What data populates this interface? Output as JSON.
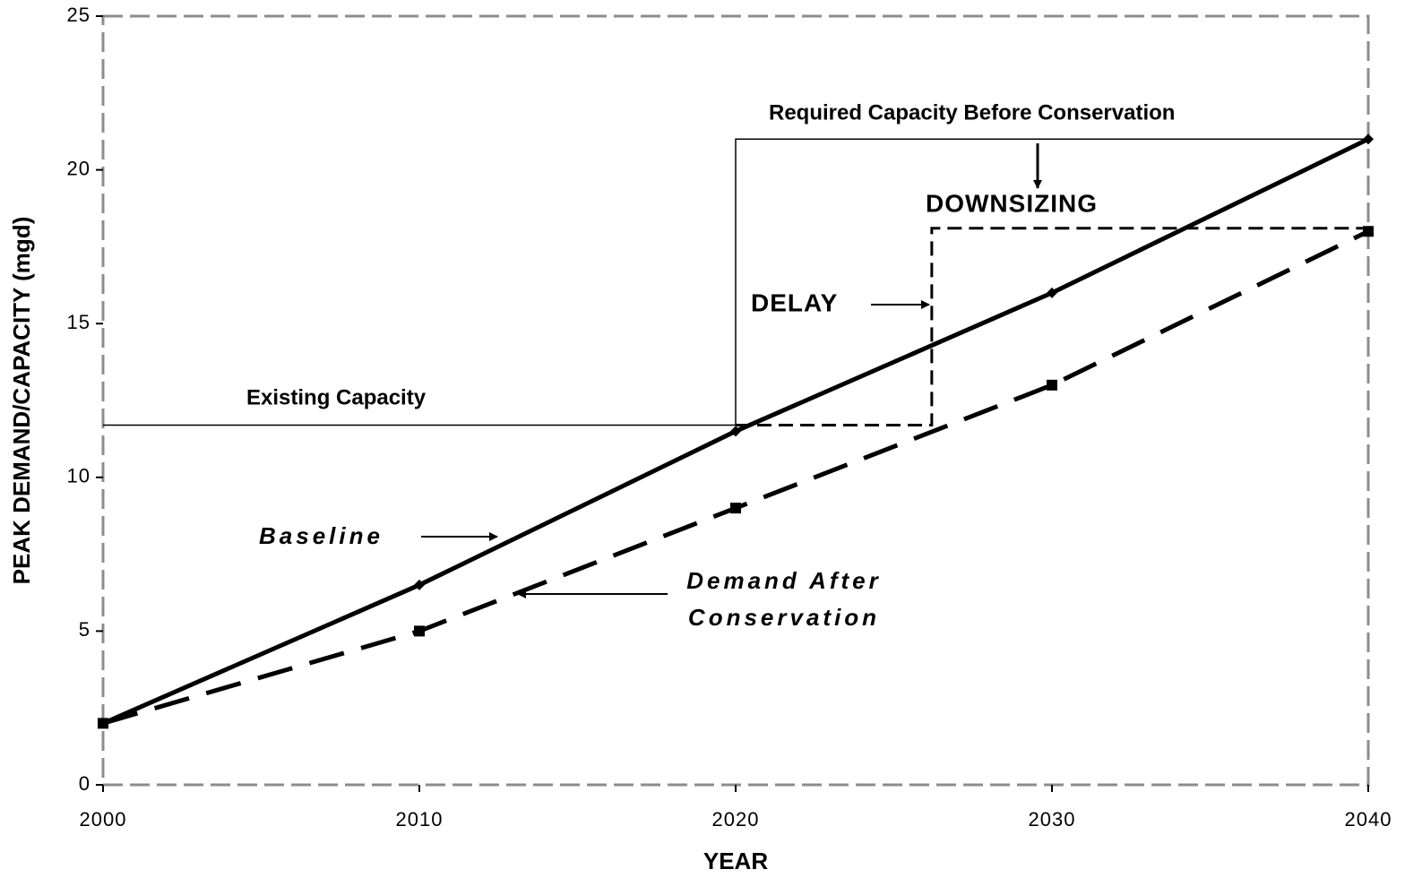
{
  "chart_data": {
    "type": "line",
    "xlabel": "YEAR",
    "ylabel": "PEAK DEMAND/CAPACITY (mgd)",
    "x": [
      2000,
      2010,
      2020,
      2030,
      2040
    ],
    "xlim": [
      2000,
      2040
    ],
    "ylim": [
      0,
      25
    ],
    "xticks": [
      2000,
      2010,
      2020,
      2030,
      2040
    ],
    "yticks": [
      0,
      5,
      10,
      15,
      20,
      25
    ],
    "series": [
      {
        "name": "Baseline",
        "color": "#000000",
        "dashed": false,
        "marker": "diamond",
        "values": [
          2,
          6.5,
          11.5,
          16,
          21
        ]
      },
      {
        "name": "Demand After Conservation",
        "color": "#000000",
        "dashed": true,
        "marker": "square",
        "values": [
          2,
          5,
          9,
          13,
          18
        ]
      }
    ],
    "capacity": {
      "existing": 11.7,
      "before_conservation": 21,
      "after_conservation": 18.1,
      "expansion_year_before": 2020,
      "expansion_year_after": 2026.2
    },
    "annotations": [
      "Required Capacity Before Conservation",
      "DOWNSIZING",
      "DELAY",
      "Existing Capacity"
    ],
    "frame_color": "#8c8c8c"
  }
}
